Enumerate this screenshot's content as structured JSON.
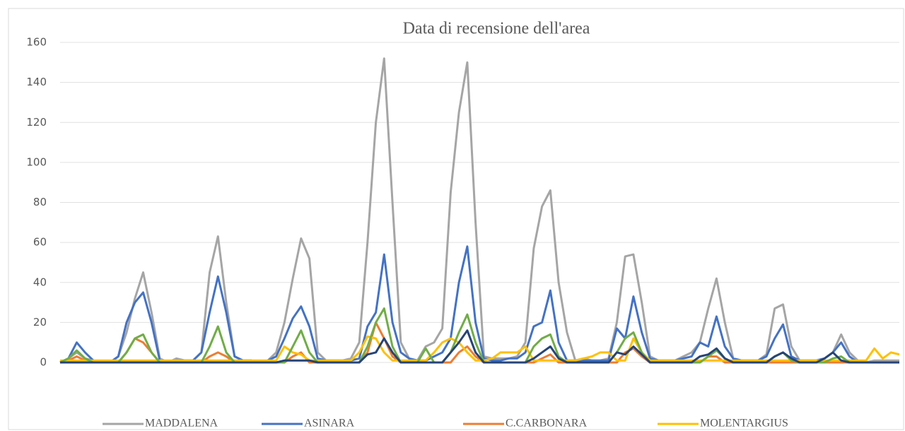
{
  "chart_data": {
    "type": "line",
    "title": "Data di recensione dell'area",
    "ylim": [
      0,
      160
    ],
    "yticks": [
      0,
      20,
      40,
      60,
      80,
      100,
      120,
      140,
      160
    ],
    "grid": true,
    "legend": "bottom",
    "series": [
      {
        "name": "MADDALENA",
        "color": "#a5a5a5",
        "values": [
          0,
          2,
          5,
          2,
          1,
          0,
          0,
          3,
          15,
          32,
          45,
          25,
          2,
          0,
          2,
          1,
          1,
          5,
          45,
          63,
          30,
          3,
          1,
          1,
          0,
          1,
          5,
          20,
          42,
          62,
          52,
          5,
          1,
          1,
          1,
          2,
          10,
          60,
          120,
          152,
          80,
          10,
          2,
          1,
          8,
          10,
          17,
          85,
          125,
          150,
          70,
          3,
          2,
          2,
          2,
          3,
          10,
          57,
          78,
          86,
          40,
          15,
          1,
          2,
          1,
          1,
          2,
          20,
          53,
          54,
          30,
          3,
          1,
          1,
          1,
          3,
          5,
          10,
          27,
          42,
          20,
          2,
          1,
          1,
          1,
          4,
          27,
          29,
          8,
          1,
          1,
          1,
          2,
          5,
          14,
          5,
          1,
          0,
          1,
          1,
          1,
          1
        ]
      },
      {
        "name": "ASINARA",
        "color": "#4472c4",
        "values": [
          0,
          2,
          10,
          5,
          1,
          0,
          0,
          3,
          20,
          30,
          35,
          20,
          1,
          0,
          1,
          1,
          1,
          5,
          25,
          43,
          25,
          3,
          1,
          1,
          0,
          1,
          3,
          12,
          22,
          28,
          18,
          2,
          1,
          1,
          1,
          1,
          2,
          18,
          25,
          54,
          20,
          5,
          2,
          1,
          1,
          3,
          5,
          12,
          40,
          58,
          20,
          2,
          1,
          1,
          2,
          2,
          5,
          18,
          20,
          36,
          10,
          1,
          1,
          1,
          1,
          1,
          1,
          17,
          12,
          33,
          15,
          2,
          1,
          1,
          1,
          2,
          3,
          10,
          8,
          23,
          8,
          2,
          1,
          1,
          1,
          3,
          12,
          19,
          3,
          1,
          1,
          1,
          2,
          5,
          10,
          3,
          0,
          0,
          0,
          0,
          0,
          0
        ]
      },
      {
        "name": "C.CARBONARA",
        "color": "#ed7d31",
        "values": [
          0,
          1,
          3,
          1,
          0,
          0,
          0,
          0,
          5,
          12,
          10,
          5,
          0,
          0,
          0,
          0,
          0,
          0,
          3,
          5,
          3,
          0,
          0,
          0,
          0,
          0,
          0,
          0,
          3,
          5,
          0,
          0,
          0,
          0,
          0,
          0,
          0,
          5,
          20,
          12,
          3,
          0,
          0,
          0,
          0,
          0,
          0,
          0,
          5,
          8,
          3,
          0,
          0,
          0,
          0,
          0,
          0,
          0,
          2,
          4,
          0,
          0,
          0,
          0,
          0,
          0,
          0,
          0,
          5,
          7,
          3,
          0,
          0,
          0,
          0,
          0,
          0,
          0,
          3,
          3,
          0,
          0,
          0,
          0,
          0,
          0,
          0,
          0,
          0,
          0,
          0,
          0,
          0,
          0,
          0,
          0,
          0,
          0,
          0,
          0,
          0,
          0
        ]
      },
      {
        "name": "MOLENTARGIUS",
        "color": "#ffc000",
        "values": [
          1,
          1,
          1,
          1,
          1,
          1,
          1,
          1,
          1,
          1,
          1,
          1,
          1,
          1,
          1,
          1,
          1,
          1,
          1,
          1,
          1,
          1,
          1,
          1,
          1,
          1,
          1,
          8,
          5,
          4,
          1,
          1,
          1,
          1,
          1,
          1,
          5,
          13,
          12,
          5,
          1,
          1,
          1,
          1,
          1,
          5,
          10,
          12,
          10,
          5,
          1,
          1,
          2,
          5,
          5,
          5,
          8,
          1,
          1,
          1,
          1,
          1,
          1,
          2,
          3,
          5,
          5,
          1,
          1,
          12,
          5,
          1,
          1,
          1,
          1,
          1,
          1,
          1,
          1,
          1,
          1,
          1,
          1,
          1,
          1,
          1,
          1,
          1,
          1,
          1,
          1,
          1,
          1,
          1,
          1,
          1,
          1,
          1,
          7,
          2,
          5,
          4
        ]
      },
      {
        "color": "#70ad47",
        "values": [
          0,
          2,
          6,
          2,
          0,
          0,
          0,
          0,
          5,
          12,
          14,
          5,
          0,
          0,
          0,
          0,
          0,
          0,
          8,
          18,
          5,
          0,
          0,
          0,
          0,
          0,
          0,
          0,
          8,
          16,
          5,
          0,
          0,
          0,
          0,
          0,
          0,
          8,
          20,
          27,
          8,
          0,
          0,
          0,
          7,
          0,
          0,
          5,
          15,
          24,
          10,
          0,
          0,
          0,
          0,
          0,
          0,
          8,
          12,
          14,
          3,
          0,
          0,
          0,
          0,
          0,
          0,
          5,
          12,
          15,
          5,
          0,
          0,
          0,
          0,
          0,
          0,
          0,
          3,
          6,
          2,
          0,
          0,
          0,
          0,
          0,
          3,
          5,
          1,
          0,
          0,
          0,
          0,
          2,
          3,
          0,
          0,
          0,
          0,
          0,
          0,
          0
        ]
      },
      {
        "color": "#264478",
        "values": [
          0,
          0,
          0,
          0,
          0,
          0,
          0,
          0,
          0,
          0,
          0,
          0,
          0,
          0,
          0,
          0,
          0,
          0,
          0,
          0,
          0,
          0,
          0,
          0,
          0,
          0,
          0,
          1,
          1,
          1,
          1,
          0,
          0,
          0,
          0,
          0,
          0,
          4,
          5,
          12,
          5,
          0,
          0,
          0,
          0,
          0,
          0,
          5,
          10,
          16,
          5,
          0,
          0,
          0,
          0,
          0,
          0,
          2,
          5,
          8,
          2,
          0,
          0,
          0,
          0,
          0,
          0,
          5,
          4,
          8,
          4,
          0,
          0,
          0,
          0,
          0,
          0,
          3,
          4,
          7,
          2,
          0,
          0,
          0,
          0,
          0,
          3,
          5,
          2,
          0,
          0,
          0,
          2,
          5,
          1,
          0,
          0,
          0,
          0,
          0,
          0,
          0
        ]
      }
    ]
  }
}
